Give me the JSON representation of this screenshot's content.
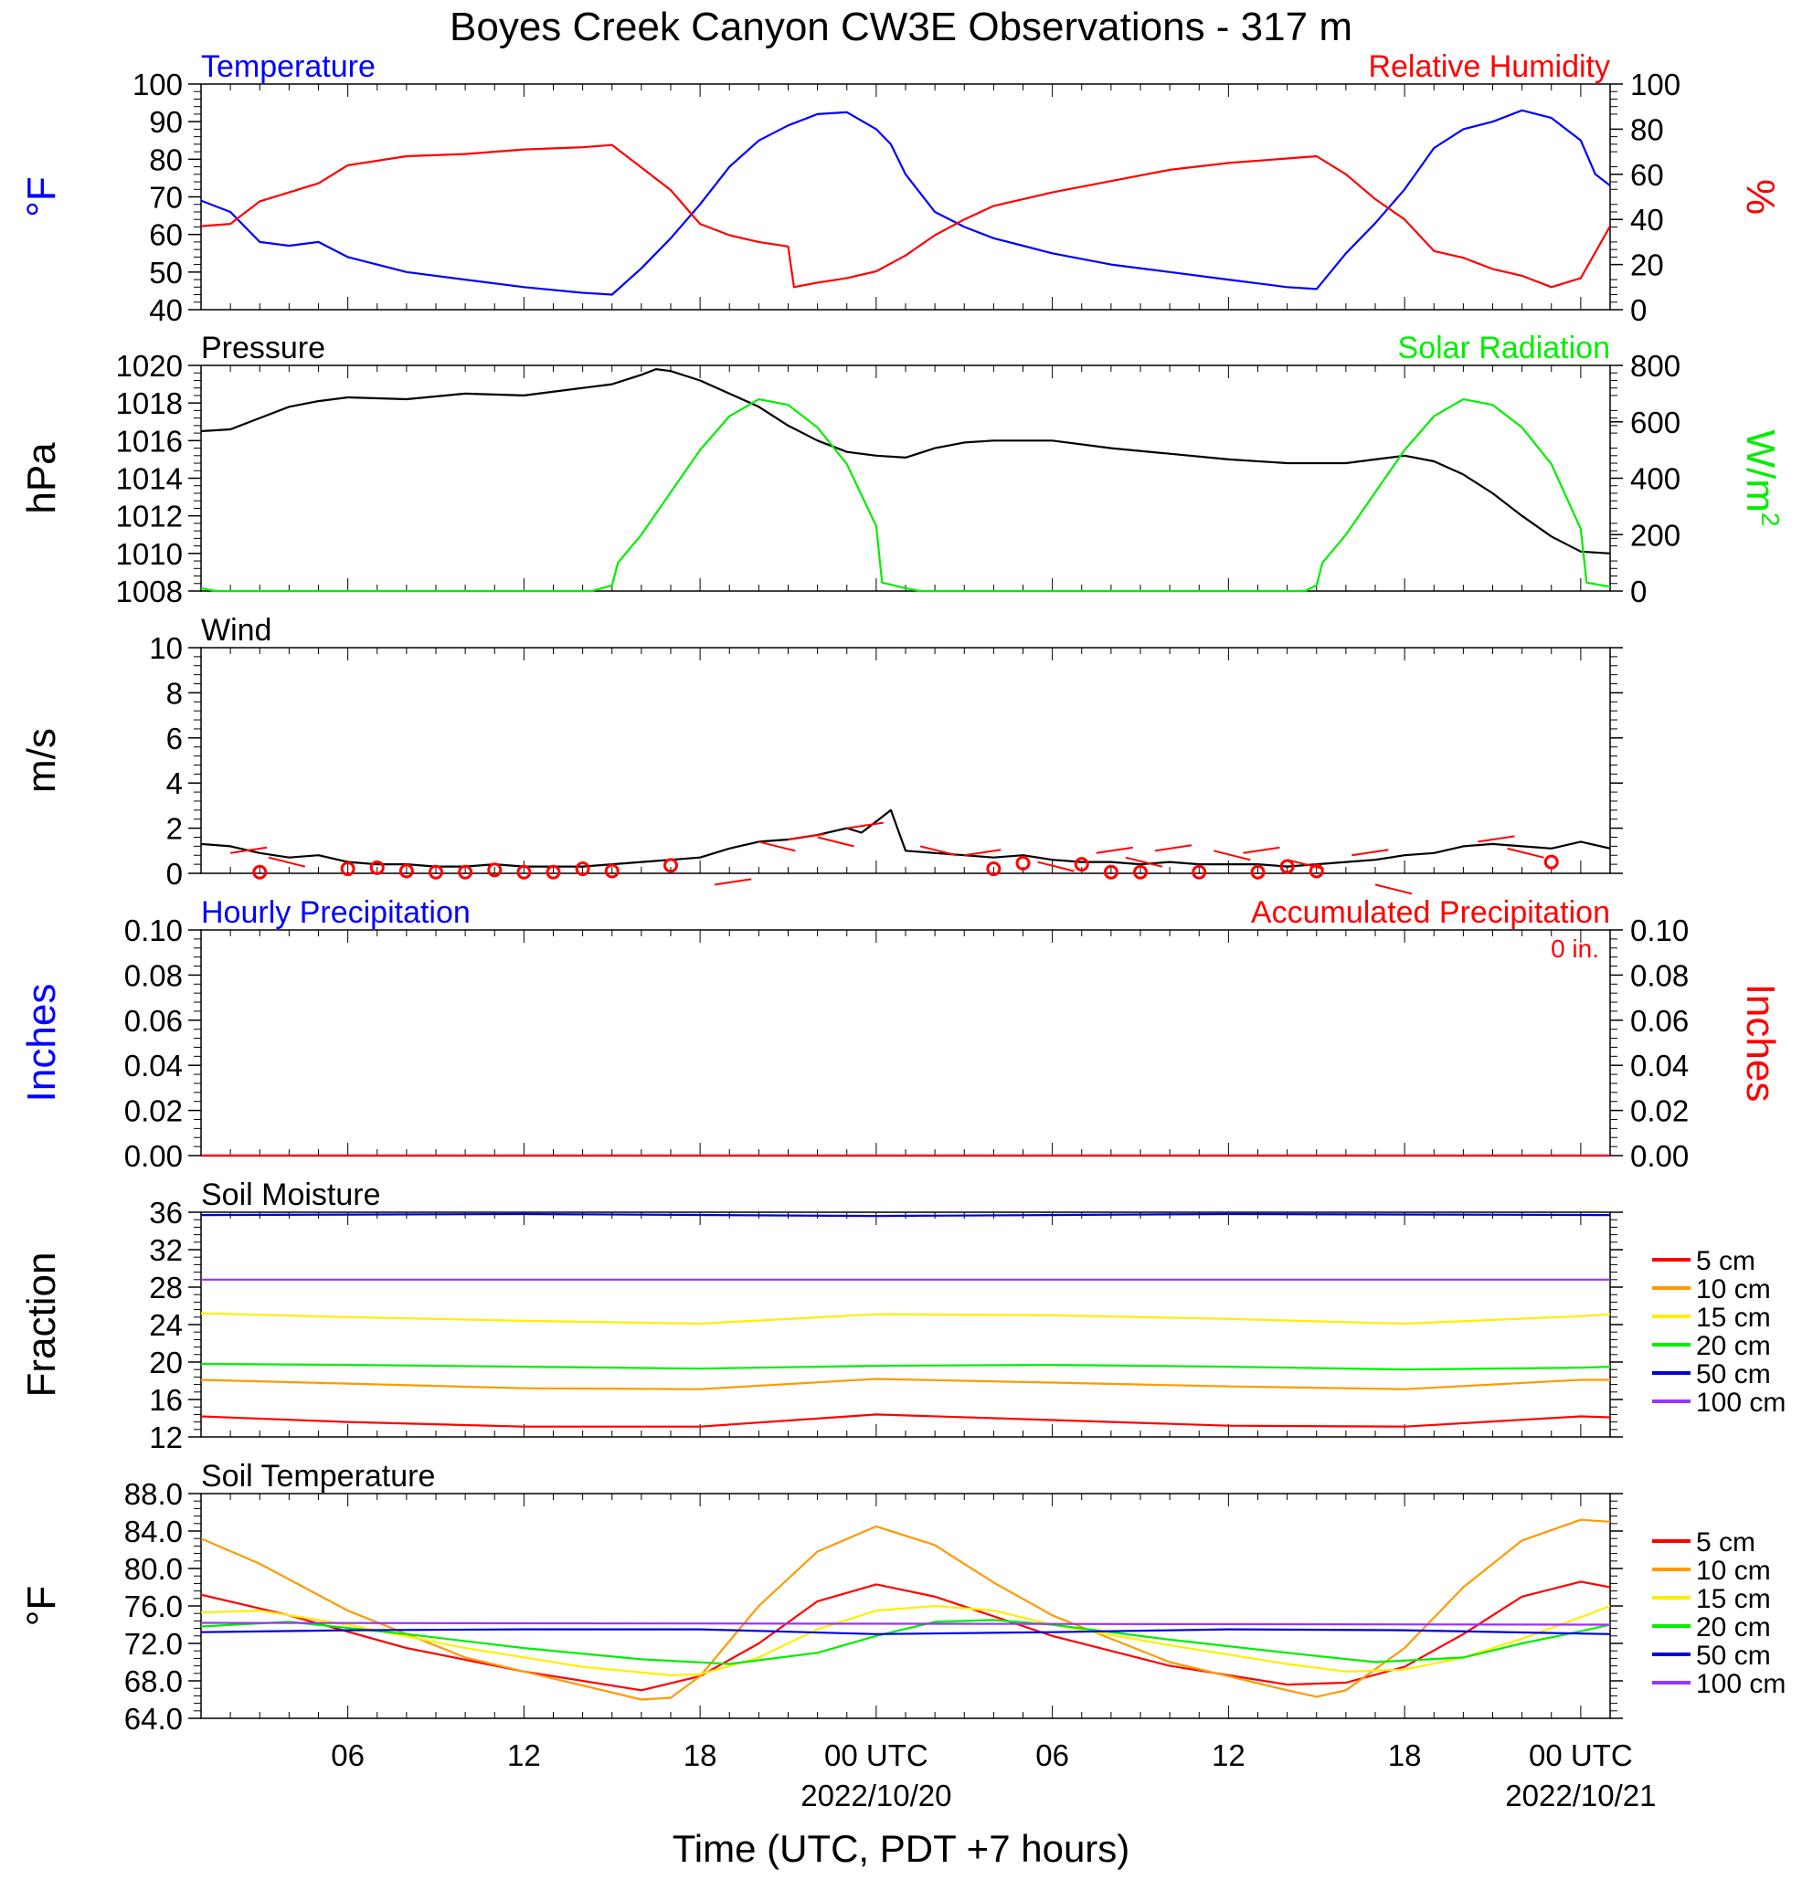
{
  "title": "Boyes Creek Canyon CW3E Observations - 317 m",
  "x_axis": {
    "label": "Time (UTC, PDT +7 hours)",
    "ticks": [
      {
        "hour": 6,
        "label": "06"
      },
      {
        "hour": 12,
        "label": "12"
      },
      {
        "hour": 18,
        "label": "18"
      },
      {
        "hour": 24,
        "label": "00 UTC",
        "date": "2022/10/20"
      },
      {
        "hour": 30,
        "label": "06"
      },
      {
        "hour": 36,
        "label": "12"
      },
      {
        "hour": 42,
        "label": "18"
      },
      {
        "hour": 48,
        "label": "00 UTC",
        "date": "2022/10/21"
      }
    ],
    "range_hours_since_start": [
      1,
      49
    ]
  },
  "chart_data": [
    {
      "type": "line",
      "title_left": "Temperature",
      "title_right": "Relative Humidity",
      "ylabel": "°F",
      "y2label": "%",
      "ylim": [
        40,
        100
      ],
      "y2lim": [
        0,
        100
      ],
      "yticks": [
        "40",
        "50",
        "60",
        "70",
        "80",
        "90",
        "100"
      ],
      "y2ticks": [
        "0",
        "20",
        "40",
        "60",
        "80",
        "100"
      ],
      "colors": {
        "temperature": "#0000ff",
        "humidity": "#ff0000"
      },
      "series": [
        {
          "name": "Temperature",
          "axis": "left",
          "x": [
            1,
            2,
            3,
            4,
            5,
            6,
            8,
            10,
            12,
            14,
            15,
            16,
            17,
            18,
            19,
            20,
            21,
            22,
            23,
            24,
            24.5,
            25,
            26,
            27,
            28,
            29,
            30,
            32,
            34,
            36,
            38,
            39,
            40,
            41,
            42,
            43,
            44,
            45,
            46,
            47,
            48,
            48.5,
            49
          ],
          "y": [
            69,
            66,
            58,
            57,
            58,
            54,
            50,
            48,
            46,
            44.5,
            44,
            51,
            59,
            68,
            78,
            85,
            89,
            92,
            92.5,
            88,
            84,
            76,
            66,
            62,
            59,
            57,
            55,
            52,
            50,
            48,
            46,
            45.5,
            55,
            63,
            72,
            83,
            88,
            90,
            93,
            91,
            85,
            76,
            73
          ]
        },
        {
          "name": "Relative Humidity",
          "axis": "right",
          "x": [
            1,
            2,
            3,
            4,
            5,
            6,
            8,
            10,
            12,
            14,
            15,
            16,
            17,
            18,
            19,
            20,
            21,
            21.2,
            22,
            23,
            24,
            25,
            26,
            27,
            28,
            30,
            32,
            34,
            36,
            38,
            39,
            40,
            41,
            42,
            43,
            44,
            45,
            46,
            47,
            48,
            49
          ],
          "y": [
            37,
            38,
            48,
            52,
            56,
            64,
            68,
            69,
            71,
            72,
            73,
            63,
            53,
            38,
            33,
            30,
            28,
            10,
            12,
            14,
            17,
            24,
            33,
            40,
            46,
            52,
            57,
            62,
            65,
            67,
            68,
            60,
            49,
            40,
            26,
            23,
            18,
            15,
            10,
            14,
            37
          ]
        }
      ]
    },
    {
      "type": "line",
      "title_left": "Pressure",
      "title_right": "Solar Radiation",
      "ylabel": "hPa",
      "y2label": "W/m",
      "y2label_sup": "2",
      "ylim": [
        1008,
        1020
      ],
      "y2lim": [
        0,
        800
      ],
      "yticks": [
        "1008",
        "1010",
        "1012",
        "1014",
        "1016",
        "1018",
        "1020"
      ],
      "y2ticks": [
        "0",
        "200",
        "400",
        "600",
        "800"
      ],
      "colors": {
        "pressure": "#000000",
        "solar": "#00ee00"
      },
      "series": [
        {
          "name": "Pressure",
          "axis": "left",
          "x": [
            1,
            2,
            3,
            4,
            5,
            6,
            8,
            10,
            12,
            14,
            15,
            16,
            16.5,
            17,
            18,
            19,
            20,
            21,
            22,
            23,
            24,
            25,
            26,
            27,
            28,
            29,
            30,
            32,
            34,
            36,
            38,
            39,
            40,
            41,
            42,
            43,
            44,
            45,
            46,
            47,
            48,
            49
          ],
          "y": [
            1016.5,
            1016.6,
            1017.2,
            1017.8,
            1018.1,
            1018.3,
            1018.2,
            1018.5,
            1018.4,
            1018.8,
            1019.0,
            1019.5,
            1019.8,
            1019.7,
            1019.2,
            1018.5,
            1017.8,
            1016.8,
            1016.0,
            1015.4,
            1015.2,
            1015.1,
            1015.6,
            1015.9,
            1016.0,
            1016.0,
            1016.0,
            1015.6,
            1015.3,
            1015.0,
            1014.8,
            1014.8,
            1014.8,
            1015.0,
            1015.2,
            1014.9,
            1014.2,
            1013.2,
            1012.0,
            1010.9,
            1010.1,
            1010.0
          ]
        },
        {
          "name": "Solar Radiation",
          "axis": "right",
          "x": [
            1,
            1.5,
            14.3,
            15,
            15.2,
            16,
            17,
            18,
            19,
            20,
            21,
            22,
            23,
            24,
            24.2,
            25,
            25.5,
            38.6,
            39,
            39.2,
            40,
            41,
            42,
            43,
            44,
            45,
            46,
            47,
            48,
            48.2,
            49
          ],
          "y": [
            10,
            0,
            0,
            20,
            100,
            200,
            350,
            500,
            620,
            680,
            660,
            580,
            450,
            230,
            30,
            10,
            0,
            0,
            20,
            100,
            200,
            350,
            500,
            620,
            680,
            660,
            580,
            450,
            220,
            30,
            15
          ]
        }
      ]
    },
    {
      "type": "line",
      "title_left": "Wind",
      "ylabel": "m/s",
      "ylim": [
        0,
        10
      ],
      "yticks": [
        "0",
        "2",
        "4",
        "6",
        "8",
        "10"
      ],
      "colors": {
        "speed": "#000000",
        "direction": "#ff0000"
      },
      "series": [
        {
          "name": "Wind",
          "x": [
            1,
            2,
            3,
            4,
            5,
            6,
            7,
            8,
            9,
            10,
            11,
            12,
            13,
            14,
            15,
            16,
            17,
            18,
            19,
            20,
            21,
            22,
            23,
            23.5,
            24,
            24.5,
            25,
            26,
            27,
            28,
            29,
            30,
            31,
            32,
            33,
            34,
            35,
            36,
            37,
            38,
            39,
            40,
            41,
            42,
            43,
            44,
            45,
            46,
            47,
            48,
            49
          ],
          "y": [
            1.3,
            1.2,
            0.9,
            0.7,
            0.8,
            0.5,
            0.4,
            0.4,
            0.3,
            0.3,
            0.4,
            0.3,
            0.3,
            0.3,
            0.4,
            0.5,
            0.6,
            0.7,
            1.1,
            1.4,
            1.5,
            1.7,
            2.0,
            1.8,
            2.3,
            2.8,
            1.0,
            0.9,
            0.8,
            0.7,
            0.8,
            0.6,
            0.5,
            0.5,
            0.4,
            0.5,
            0.4,
            0.4,
            0.4,
            0.3,
            0.4,
            0.5,
            0.6,
            0.8,
            0.9,
            1.2,
            1.3,
            1.2,
            1.1,
            1.4,
            1.1
          ]
        },
        {
          "name": "calm_markers",
          "x": [
            3,
            6,
            7,
            8,
            9,
            10,
            11,
            12,
            13,
            14,
            15,
            17,
            28,
            29,
            31,
            32,
            33,
            35,
            37,
            38,
            39,
            47
          ],
          "y": [
            0.05,
            0.2,
            0.25,
            0.1,
            0.05,
            0.05,
            0.15,
            0.05,
            0.05,
            0.2,
            0.1,
            0.35,
            0.2,
            0.45,
            0.4,
            0.05,
            0.05,
            0.05,
            0.05,
            0.3,
            0.1,
            0.5
          ]
        },
        {
          "name": "wind_barbs",
          "x": [
            2,
            3.3,
            18.5,
            20,
            21,
            22,
            23,
            25.5,
            27,
            29.5,
            31.5,
            32.5,
            33.5,
            35.5,
            36.5,
            38,
            40.2,
            41,
            44.5,
            45.5
          ],
          "y": [
            0.9,
            0.7,
            -0.5,
            1.4,
            1.5,
            1.6,
            2.0,
            1.2,
            0.8,
            0.5,
            0.9,
            0.7,
            1.0,
            1.0,
            0.9,
            0.6,
            0.8,
            -0.5,
            1.4,
            1.1
          ]
        }
      ]
    },
    {
      "type": "line",
      "title_left": "Hourly Precipitation",
      "title_right": "Accumulated Precipitation",
      "annotation": "0 in.",
      "ylabel": "Inches",
      "y2label": "Inches",
      "ylim": [
        0,
        0.1
      ],
      "y2lim": [
        0,
        0.1
      ],
      "yticks": [
        "0.00",
        "0.02",
        "0.04",
        "0.06",
        "0.08",
        "0.10"
      ],
      "y2ticks": [
        "0.00",
        "0.02",
        "0.04",
        "0.06",
        "0.08",
        "0.10"
      ],
      "colors": {
        "hourly": "#0000ff",
        "accumulated": "#ff0000"
      },
      "series": [
        {
          "name": "Hourly Precipitation",
          "axis": "left",
          "x": [
            1,
            49
          ],
          "y": [
            0,
            0
          ]
        },
        {
          "name": "Accumulated Precipitation",
          "axis": "right",
          "x": [
            1,
            49
          ],
          "y": [
            0,
            0
          ]
        }
      ]
    },
    {
      "type": "line",
      "title_left": "Soil Moisture",
      "ylabel": "Fraction",
      "ylim": [
        12,
        36
      ],
      "yticks": [
        "12",
        "16",
        "20",
        "24",
        "28",
        "32",
        "36"
      ],
      "legend": [
        "5 cm",
        "10 cm",
        "15 cm",
        "20 cm",
        "50 cm",
        "100 cm"
      ],
      "colors": {
        "5 cm": "#ff0000",
        "10 cm": "#ff9900",
        "15 cm": "#ffee00",
        "20 cm": "#00ee00",
        "50 cm": "#0000dd",
        "100 cm": "#9933ff"
      },
      "series": [
        {
          "name": "5 cm",
          "x": [
            1,
            6,
            12,
            18,
            24,
            30,
            36,
            42,
            48,
            49
          ],
          "y": [
            14.2,
            13.6,
            13.1,
            13.1,
            14.4,
            13.8,
            13.2,
            13.1,
            14.2,
            14.1
          ]
        },
        {
          "name": "10 cm",
          "x": [
            1,
            6,
            12,
            18,
            24,
            30,
            36,
            42,
            48,
            49
          ],
          "y": [
            18.1,
            17.7,
            17.2,
            17.1,
            18.2,
            17.8,
            17.4,
            17.1,
            18.1,
            18.1
          ]
        },
        {
          "name": "15 cm",
          "x": [
            1,
            6,
            12,
            18,
            24,
            30,
            36,
            42,
            48,
            49
          ],
          "y": [
            25.2,
            24.8,
            24.4,
            24.1,
            25.1,
            25.0,
            24.6,
            24.1,
            24.9,
            25.1
          ]
        },
        {
          "name": "20 cm",
          "x": [
            1,
            6,
            12,
            18,
            24,
            30,
            36,
            42,
            48,
            49
          ],
          "y": [
            19.8,
            19.7,
            19.5,
            19.3,
            19.6,
            19.7,
            19.5,
            19.2,
            19.4,
            19.5
          ]
        },
        {
          "name": "50 cm",
          "x": [
            1,
            12,
            24,
            36,
            49
          ],
          "y": [
            35.7,
            35.8,
            35.6,
            35.8,
            35.7
          ]
        },
        {
          "name": "100 cm",
          "x": [
            1,
            49
          ],
          "y": [
            28.8,
            28.8
          ]
        }
      ]
    },
    {
      "type": "line",
      "title_left": "Soil Temperature",
      "ylabel": "°F",
      "ylim": [
        64,
        88
      ],
      "yticks": [
        "64.0",
        "68.0",
        "72.0",
        "76.0",
        "80.0",
        "84.0",
        "88.0"
      ],
      "legend": [
        "5 cm",
        "10 cm",
        "15 cm",
        "20 cm",
        "50 cm",
        "100 cm"
      ],
      "colors": {
        "5 cm": "#ff0000",
        "10 cm": "#ff9900",
        "15 cm": "#ffee00",
        "20 cm": "#00ee00",
        "50 cm": "#0000dd",
        "100 cm": "#9933ff"
      },
      "series": [
        {
          "name": "5 cm",
          "x": [
            1,
            4,
            8,
            12,
            16,
            18,
            20,
            22,
            24,
            26,
            30,
            34,
            38,
            40,
            42,
            44,
            46,
            48,
            49
          ],
          "y": [
            77.2,
            75.0,
            71.5,
            69.0,
            67.0,
            68.5,
            72.0,
            76.5,
            78.3,
            77.0,
            72.8,
            69.6,
            67.6,
            67.8,
            69.5,
            73.0,
            77.0,
            78.6,
            78.0
          ]
        },
        {
          "name": "10 cm",
          "x": [
            1,
            3,
            6,
            10,
            14,
            16,
            17,
            18,
            20,
            22,
            24,
            26,
            28,
            30,
            34,
            38,
            39,
            40,
            42,
            44,
            46,
            48,
            49
          ],
          "y": [
            83.2,
            80.5,
            75.5,
            70.5,
            67.5,
            66.0,
            66.2,
            68.5,
            76.0,
            81.8,
            84.5,
            82.5,
            78.5,
            75.0,
            70.0,
            67.0,
            66.3,
            67.0,
            71.5,
            78.0,
            83.0,
            85.2,
            85.0
          ]
        },
        {
          "name": "15 cm",
          "x": [
            1,
            3,
            6,
            10,
            14,
            17,
            18,
            20,
            22,
            24,
            26,
            28,
            30,
            34,
            38,
            40,
            42,
            44,
            46,
            48,
            49
          ],
          "y": [
            75.3,
            75.5,
            74.0,
            71.5,
            69.5,
            68.6,
            68.7,
            70.5,
            73.5,
            75.5,
            76.0,
            75.5,
            74.0,
            71.8,
            69.8,
            69.0,
            69.2,
            70.5,
            72.5,
            74.8,
            76.0
          ]
        },
        {
          "name": "20 cm",
          "x": [
            1,
            4,
            8,
            12,
            16,
            19,
            22,
            24,
            26,
            28,
            30,
            34,
            38,
            41,
            44,
            46,
            48,
            49
          ],
          "y": [
            73.8,
            74.3,
            73.0,
            71.5,
            70.3,
            69.8,
            71.0,
            72.8,
            74.3,
            74.5,
            74.0,
            72.4,
            71.0,
            70.0,
            70.5,
            72.0,
            73.3,
            74.0
          ]
        },
        {
          "name": "50 cm",
          "x": [
            1,
            6,
            12,
            18,
            24,
            30,
            36,
            42,
            49
          ],
          "y": [
            73.2,
            73.4,
            73.5,
            73.5,
            73.0,
            73.2,
            73.5,
            73.4,
            73.0
          ]
        },
        {
          "name": "100 cm",
          "x": [
            1,
            49
          ],
          "y": [
            74.2,
            74.0
          ]
        }
      ]
    }
  ]
}
